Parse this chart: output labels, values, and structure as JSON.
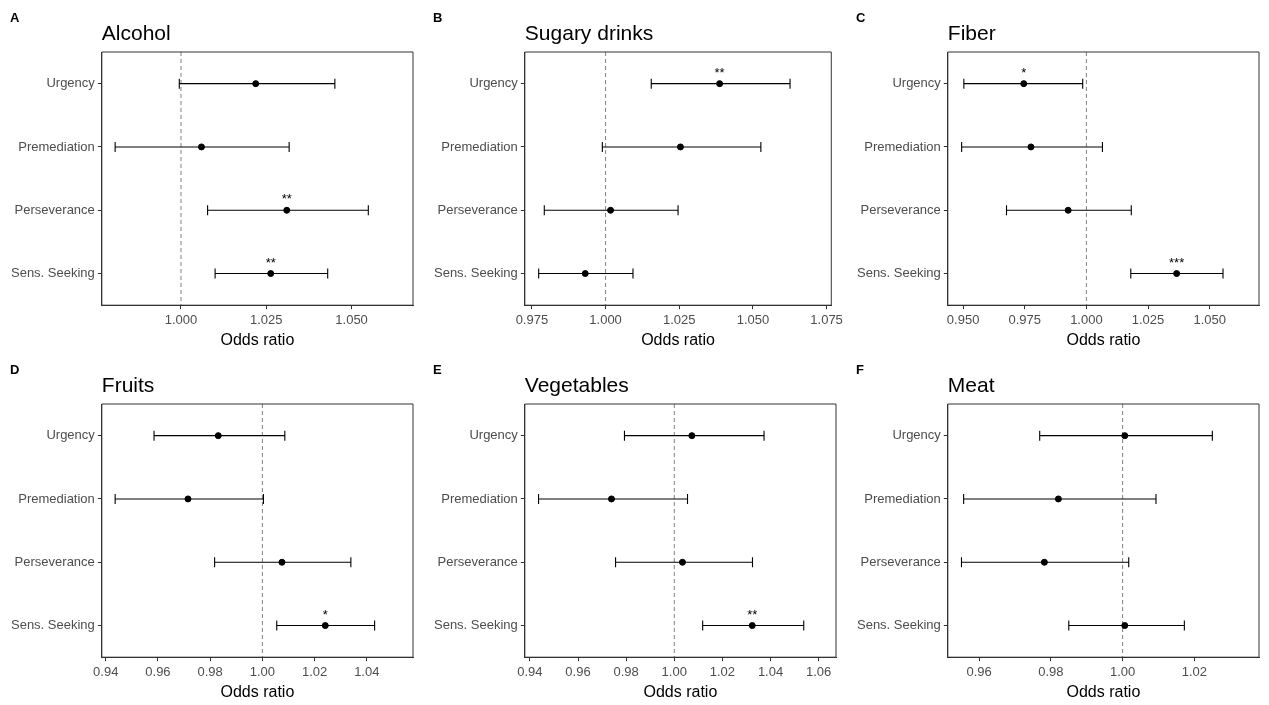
{
  "chart_data": [
    {
      "type": "scatter",
      "orientation": "horizontal",
      "title": "Alcohol",
      "xlabel": "Odds ratio",
      "categories": [
        "Urgency",
        "Premediation",
        "Perseverance",
        "Sens. Seeking"
      ],
      "values": [
        1.0219,
        1.006,
        1.031,
        1.0263
      ],
      "errors": [
        [
          0.9995,
          1.0451
        ],
        [
          0.9807,
          1.0317
        ],
        [
          1.0078,
          1.0549
        ],
        [
          1.01,
          1.043
        ]
      ],
      "value_labels": [
        null,
        null,
        "**",
        "**"
      ],
      "color": "#000000",
      "marker": "circle",
      "xlim": [
        0.9768,
        1.068
      ],
      "xticks": [
        {
          "value": 1,
          "label": "1.000"
        },
        1.025,
        {
          "value": 1.05,
          "label": "1.050"
        }
      ],
      "grid": false,
      "legend": false,
      "ref_lines": [
        {
          "axis": "x",
          "value": 1,
          "line_style": "dashed",
          "color": "#808080"
        }
      ],
      "annotations": [
        "A"
      ]
    },
    {
      "type": "scatter",
      "orientation": "horizontal",
      "title": "Sugary drinks",
      "xlabel": "Odds ratio",
      "categories": [
        "Urgency",
        "Premediation",
        "Perseverance",
        "Sens. Seeking"
      ],
      "values": [
        1.0387,
        1.0254,
        1.0017,
        0.9931
      ],
      "errors": [
        [
          1.0155,
          1.0626
        ],
        [
          0.9989,
          1.0527
        ],
        [
          0.9792,
          1.0246
        ],
        [
          0.9773,
          1.0093
        ]
      ],
      "value_labels": [
        "**",
        null,
        null,
        null
      ],
      "color": "#000000",
      "marker": "circle",
      "xlim": [
        0.9726,
        1.0766
      ],
      "xticks": [
        0.975,
        {
          "value": 1,
          "label": "1.000"
        },
        1.025,
        {
          "value": 1.05,
          "label": "1.050"
        },
        1.075
      ],
      "grid": false,
      "legend": false,
      "ref_lines": [
        {
          "axis": "x",
          "value": 1,
          "line_style": "dashed",
          "color": "#808080"
        }
      ],
      "annotations": [
        "B"
      ]
    },
    {
      "type": "scatter",
      "orientation": "horizontal",
      "title": "Fiber",
      "xlabel": "Odds ratio",
      "categories": [
        "Urgency",
        "Premediation",
        "Perseverance",
        "Sens. Seeking"
      ],
      "values": [
        0.9746,
        0.9775,
        0.9926,
        1.0366
      ],
      "errors": [
        [
          0.9503,
          0.9985
        ],
        [
          0.9494,
          1.0065
        ],
        [
          0.9676,
          1.0182
        ],
        [
          1.018,
          1.0554
        ]
      ],
      "value_labels": [
        "*",
        null,
        null,
        "***"
      ],
      "color": "#000000",
      "marker": "circle",
      "xlim": [
        0.9438,
        1.07
      ],
      "xticks": [
        {
          "value": 0.95,
          "label": "0.950"
        },
        0.975,
        {
          "value": 1,
          "label": "1.000"
        },
        1.025,
        {
          "value": 1.05,
          "label": "1.050"
        }
      ],
      "grid": false,
      "legend": false,
      "ref_lines": [
        {
          "axis": "x",
          "value": 1,
          "line_style": "dashed",
          "color": "#808080"
        }
      ],
      "annotations": [
        "C"
      ]
    },
    {
      "type": "scatter",
      "orientation": "horizontal",
      "title": "Fruits",
      "xlabel": "Odds ratio",
      "categories": [
        "Urgency",
        "Premediation",
        "Perseverance",
        "Sens. Seeking"
      ],
      "values": [
        0.9831,
        0.9715,
        1.0075,
        1.0241
      ],
      "errors": [
        [
          0.9585,
          1.0086
        ],
        [
          0.9436,
          1.0004
        ],
        [
          0.9817,
          1.0339
        ],
        [
          1.0055,
          1.043
        ]
      ],
      "value_labels": [
        null,
        null,
        null,
        "*"
      ],
      "color": "#000000",
      "marker": "circle",
      "xlim": [
        0.9385,
        1.0577
      ],
      "xticks": [
        0.94,
        0.96,
        0.98,
        {
          "value": 1,
          "label": "1.00"
        },
        1.02,
        1.04
      ],
      "grid": false,
      "legend": false,
      "ref_lines": [
        {
          "axis": "x",
          "value": 1,
          "line_style": "dashed",
          "color": "#808080"
        }
      ],
      "annotations": [
        "D"
      ]
    },
    {
      "type": "scatter",
      "orientation": "horizontal",
      "title": "Vegetables",
      "xlabel": "Odds ratio",
      "categories": [
        "Urgency",
        "Premediation",
        "Perseverance",
        "Sens. Seeking"
      ],
      "values": [
        1.0073,
        0.9739,
        1.0034,
        1.0324
      ],
      "errors": [
        [
          0.9793,
          1.0373
        ],
        [
          0.9436,
          1.0055
        ],
        [
          0.9756,
          1.0325
        ],
        [
          1.0118,
          1.0538
        ]
      ],
      "value_labels": [
        null,
        null,
        null,
        "**"
      ],
      "color": "#000000",
      "marker": "circle",
      "xlim": [
        0.9379,
        1.0672
      ],
      "xticks": [
        0.94,
        0.96,
        0.98,
        {
          "value": 1,
          "label": "1.00"
        },
        1.02,
        1.04,
        1.06
      ],
      "grid": false,
      "legend": false,
      "ref_lines": [
        {
          "axis": "x",
          "value": 1,
          "line_style": "dashed",
          "color": "#808080"
        }
      ],
      "annotations": [
        "E"
      ]
    },
    {
      "type": "scatter",
      "orientation": "horizontal",
      "title": "Meat",
      "xlabel": "Odds ratio",
      "categories": [
        "Urgency",
        "Premediation",
        "Perseverance",
        "Sens. Seeking"
      ],
      "values": [
        1.0006,
        0.9821,
        0.9782,
        1.0006
      ],
      "errors": [
        [
          0.9769,
          1.025
        ],
        [
          0.9557,
          1.0093
        ],
        [
          0.9551,
          1.0017
        ],
        [
          0.985,
          1.0172
        ]
      ],
      "color": "#000000",
      "marker": "circle",
      "xlim": [
        0.9513,
        1.038
      ],
      "xticks": [
        0.96,
        0.98,
        {
          "value": 1,
          "label": "1.00"
        },
        1.02
      ],
      "grid": false,
      "legend": false,
      "ref_lines": [
        {
          "axis": "x",
          "value": 1,
          "line_style": "dashed",
          "color": "#808080"
        }
      ],
      "annotations": [
        "F"
      ]
    }
  ]
}
